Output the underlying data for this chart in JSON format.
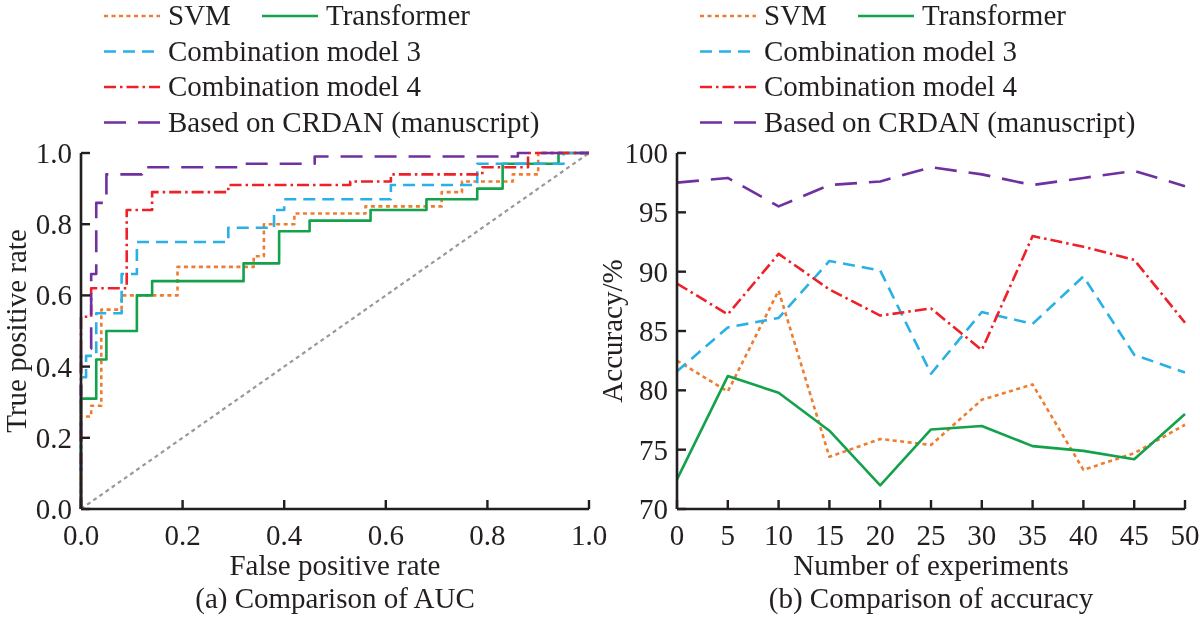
{
  "chart_data": [
    {
      "type": "step",
      "title": "(a) Comparison of AUC",
      "xlabel": "False positive rate",
      "ylabel": "True positive rate",
      "xlim": [
        0,
        1
      ],
      "ylim": [
        0,
        1
      ],
      "xticks": [
        {
          "value": 0,
          "label": "0.0"
        },
        0.2,
        0.4,
        0.6,
        0.8,
        {
          "value": 1,
          "label": "1.0"
        }
      ],
      "yticks": [
        {
          "value": 0,
          "label": "0.0"
        },
        0.2,
        0.4,
        0.6,
        0.8,
        {
          "value": 1,
          "label": "1.0"
        }
      ],
      "legend": "top left",
      "series": [
        {
          "type": "line",
          "color": "#999999",
          "line_style": "dotted",
          "x": [
            0,
            1
          ],
          "values": [
            0,
            1
          ]
        },
        {
          "name": "SVM",
          "color": "#ed7d31",
          "line_style": "dotted",
          "x": [
            0,
            0,
            0.02,
            0.04,
            0.08,
            0.19,
            0.34,
            0.36,
            0.42,
            0.56,
            0.71,
            0.75,
            0.85,
            0.9,
            1
          ],
          "values": [
            0,
            0.26,
            0.29,
            0.56,
            0.6,
            0.68,
            0.71,
            0.8,
            0.83,
            0.85,
            0.89,
            0.92,
            0.94,
            1,
            1
          ]
        },
        {
          "name": "Transformer",
          "color": "#13a24b",
          "line_style": "solid",
          "x": [
            0,
            0,
            0.03,
            0.05,
            0.11,
            0.14,
            0.32,
            0.39,
            0.45,
            0.57,
            0.68,
            0.78,
            0.83,
            0.94,
            1
          ],
          "values": [
            0,
            0.31,
            0.42,
            0.5,
            0.6,
            0.64,
            0.69,
            0.78,
            0.81,
            0.84,
            0.87,
            0.9,
            0.97,
            1,
            1
          ]
        },
        {
          "name": "Combination model 3",
          "color": "#29b0e6",
          "line_style": "dashed",
          "x": [
            0,
            0,
            0.01,
            0.03,
            0.08,
            0.11,
            0.29,
            0.38,
            0.4,
            0.61,
            0.78,
            0.95,
            1
          ],
          "values": [
            0,
            0.37,
            0.43,
            0.55,
            0.66,
            0.75,
            0.79,
            0.84,
            0.87,
            0.91,
            0.97,
            1,
            1
          ]
        },
        {
          "name": "Combination model 4",
          "color": "#ee2128",
          "line_style": "dashdot",
          "x": [
            0,
            0,
            0.02,
            0.09,
            0.14,
            0.29,
            0.53,
            0.61,
            0.79,
            0.88,
            1
          ],
          "values": [
            0,
            0.54,
            0.62,
            0.84,
            0.89,
            0.91,
            0.92,
            0.94,
            0.96,
            1,
            1
          ]
        },
        {
          "name": "Based on CRDAN (manuscript)",
          "color": "#7030a0",
          "line_style": "longdash",
          "x": [
            0,
            0,
            0.02,
            0.03,
            0.05,
            0.12,
            0.31,
            0.46,
            0.86,
            1
          ],
          "values": [
            0,
            0.45,
            0.66,
            0.86,
            0.94,
            0.96,
            0.97,
            0.99,
            1,
            1
          ]
        }
      ]
    },
    {
      "type": "line",
      "title": "(b) Comparison of accuracy",
      "xlabel": "Number of experiments",
      "ylabel": "Accuracy/%",
      "x": [
        0,
        5,
        10,
        15,
        20,
        25,
        30,
        35,
        40,
        45,
        50
      ],
      "xlim": [
        0,
        50
      ],
      "ylim": [
        70,
        100
      ],
      "xticks": [
        0,
        5,
        10,
        15,
        20,
        25,
        30,
        35,
        40,
        45,
        50
      ],
      "yticks": [
        70,
        75,
        80,
        85,
        90,
        95,
        100
      ],
      "legend": "top left",
      "series": [
        {
          "name": "SVM",
          "color": "#ed7d31",
          "line_style": "dotted",
          "values": [
            82.5,
            79.9,
            88.4,
            74.4,
            75.9,
            75.4,
            79.2,
            80.5,
            73.3,
            74.7,
            77.1
          ]
        },
        {
          "name": "Transformer",
          "color": "#13a24b",
          "line_style": "solid",
          "values": [
            72.5,
            81.2,
            79.8,
            76.6,
            72.0,
            76.7,
            77.0,
            75.3,
            74.9,
            74.2,
            78.0
          ]
        },
        {
          "name": "Combination model 3",
          "color": "#29b0e6",
          "line_style": "dashed",
          "values": [
            81.6,
            85.3,
            86.1,
            90.9,
            90.1,
            81.4,
            86.6,
            85.6,
            89.6,
            83.0,
            81.5
          ]
        },
        {
          "name": "Combination model 4",
          "color": "#ee2128",
          "line_style": "dashdot",
          "values": [
            89.0,
            86.4,
            91.5,
            88.5,
            86.3,
            86.9,
            83.4,
            93.0,
            92.1,
            91.0,
            85.7
          ]
        },
        {
          "name": "Based on CRDAN (manuscript)",
          "color": "#7030a0",
          "line_style": "longdash",
          "values": [
            97.5,
            97.9,
            95.5,
            97.3,
            97.6,
            98.8,
            98.2,
            97.3,
            97.9,
            98.5,
            97.2
          ]
        }
      ]
    }
  ]
}
